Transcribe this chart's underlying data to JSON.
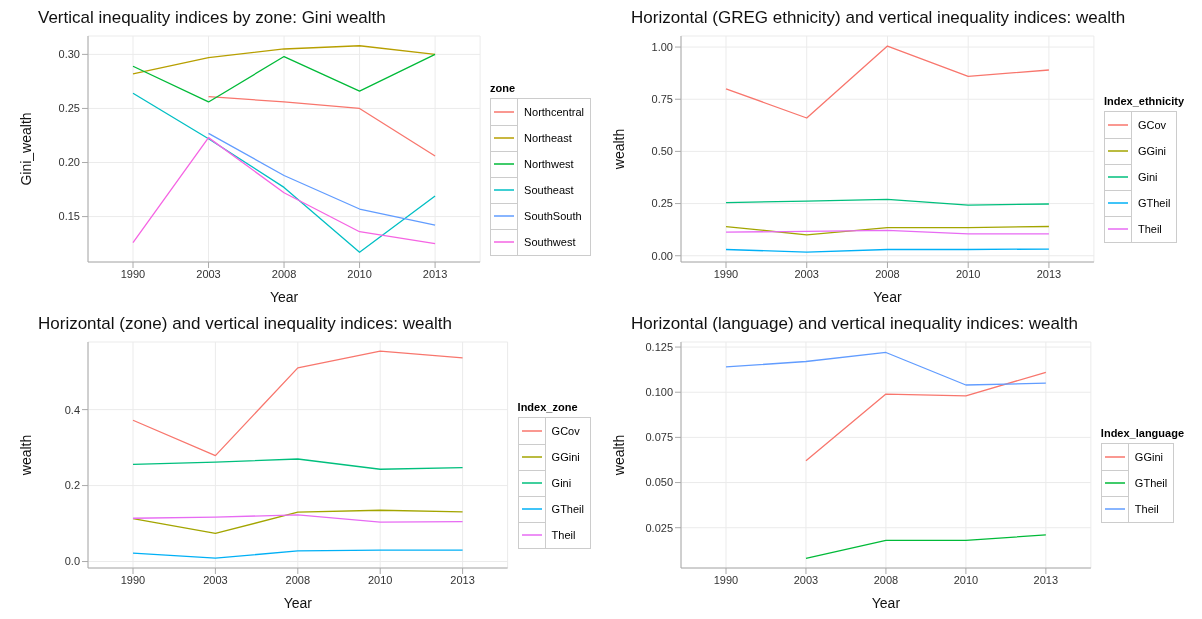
{
  "chart_data": [
    {
      "type": "line",
      "title": "Vertical inequality indices by zone: Gini wealth",
      "xlabel": "Year",
      "ylabel": "Gini_wealth",
      "legend_title": "zone",
      "legend": "right",
      "grid": true,
      "categories": [
        "1990",
        "2003",
        "2008",
        "2010",
        "2013"
      ],
      "ylim": [
        0.108,
        0.317
      ],
      "yticks": [
        {
          "value": 0.15,
          "label": "0.15"
        },
        {
          "value": 0.2,
          "label": "0.20"
        },
        {
          "value": 0.25,
          "label": "0.25"
        },
        {
          "value": 0.3,
          "label": "0.30"
        }
      ],
      "series": [
        {
          "name": "Northcentral",
          "color": "#f8766d",
          "values": [
            null,
            0.261,
            0.256,
            0.25,
            0.206
          ]
        },
        {
          "name": "Northeast",
          "color": "#b79f00",
          "values": [
            0.282,
            0.297,
            0.305,
            0.308,
            0.3
          ]
        },
        {
          "name": "Northwest",
          "color": "#00ba38",
          "values": [
            0.289,
            0.256,
            0.298,
            0.266,
            0.3
          ]
        },
        {
          "name": "Southeast",
          "color": "#00bfc4",
          "values": [
            0.264,
            0.222,
            0.177,
            0.117,
            0.169
          ]
        },
        {
          "name": "SouthSouth",
          "color": "#619cff",
          "values": [
            null,
            0.227,
            0.188,
            0.157,
            0.142
          ]
        },
        {
          "name": "Southwest",
          "color": "#f564e3",
          "values": [
            0.126,
            0.223,
            0.172,
            0.136,
            0.125
          ]
        }
      ]
    },
    {
      "type": "line",
      "title": "Horizontal (GREG ethnicity) and vertical inequality indices: wealth",
      "xlabel": "Year",
      "ylabel": "wealth",
      "legend_title": "Index_ethnicity",
      "legend": "right",
      "grid": true,
      "categories": [
        "1990",
        "2003",
        "2008",
        "2010",
        "2013"
      ],
      "ylim": [
        -0.03,
        1.053
      ],
      "yticks": [
        {
          "value": 0,
          "label": "0.00"
        },
        {
          "value": 0.25,
          "label": "0.25"
        },
        {
          "value": 0.5,
          "label": "0.50"
        },
        {
          "value": 0.75,
          "label": "0.75"
        },
        {
          "value": 1,
          "label": "1.00"
        }
      ],
      "series": [
        {
          "name": "GCov",
          "color": "#f8766d",
          "values": [
            0.8,
            0.66,
            1.005,
            0.86,
            0.89
          ]
        },
        {
          "name": "GGini",
          "color": "#a3a500",
          "values": [
            0.14,
            0.1,
            0.135,
            0.135,
            0.14
          ]
        },
        {
          "name": "Gini",
          "color": "#00bf7d",
          "values": [
            0.255,
            0.262,
            0.27,
            0.243,
            0.248
          ]
        },
        {
          "name": "GTheil",
          "color": "#00b0f6",
          "values": [
            0.03,
            0.017,
            0.03,
            0.03,
            0.032
          ]
        },
        {
          "name": "Theil",
          "color": "#e76bf3",
          "values": [
            0.113,
            0.117,
            0.122,
            0.105,
            0.105
          ]
        }
      ]
    },
    {
      "type": "line",
      "title": "Horizontal (zone) and vertical inequality indices: wealth",
      "xlabel": "Year",
      "ylabel": "wealth",
      "legend_title": "Index_zone",
      "legend": "right",
      "grid": true,
      "categories": [
        "1990",
        "2003",
        "2008",
        "2010",
        "2013"
      ],
      "ylim": [
        -0.017,
        0.578
      ],
      "yticks": [
        {
          "value": 0,
          "label": "0.0"
        },
        {
          "value": 0.2,
          "label": "0.2"
        },
        {
          "value": 0.4,
          "label": "0.4"
        }
      ],
      "series": [
        {
          "name": "GCov",
          "color": "#f8766d",
          "values": [
            0.372,
            0.279,
            0.51,
            0.554,
            0.536
          ]
        },
        {
          "name": "GGini",
          "color": "#a3a500",
          "values": [
            0.113,
            0.074,
            0.13,
            0.135,
            0.131
          ]
        },
        {
          "name": "Gini",
          "color": "#00bf7d",
          "values": [
            0.256,
            0.262,
            0.27,
            0.243,
            0.247
          ]
        },
        {
          "name": "GTheil",
          "color": "#00b0f6",
          "values": [
            0.022,
            0.009,
            0.028,
            0.03,
            0.03
          ]
        },
        {
          "name": "Theil",
          "color": "#e76bf3",
          "values": [
            0.114,
            0.117,
            0.123,
            0.104,
            0.105
          ]
        }
      ]
    },
    {
      "type": "line",
      "title": "Horizontal (language) and vertical inequality indices: wealth",
      "xlabel": "Year",
      "ylabel": "wealth",
      "legend_title": "Index_language",
      "legend": "right",
      "grid": true,
      "categories": [
        "1990",
        "2003",
        "2008",
        "2010",
        "2013"
      ],
      "ylim": [
        0.0027,
        0.1278
      ],
      "yticks": [
        {
          "value": 0.025,
          "label": "0.025"
        },
        {
          "value": 0.05,
          "label": "0.050"
        },
        {
          "value": 0.075,
          "label": "0.075"
        },
        {
          "value": 0.1,
          "label": "0.100"
        },
        {
          "value": 0.125,
          "label": "0.125"
        }
      ],
      "series": [
        {
          "name": "GGini",
          "color": "#f8766d",
          "values": [
            null,
            0.062,
            0.099,
            0.098,
            0.111
          ]
        },
        {
          "name": "GTheil",
          "color": "#00ba38",
          "values": [
            null,
            0.008,
            0.018,
            0.018,
            0.021
          ]
        },
        {
          "name": "Theil",
          "color": "#619cff",
          "values": [
            0.114,
            0.117,
            0.122,
            0.104,
            0.105
          ]
        }
      ]
    }
  ]
}
